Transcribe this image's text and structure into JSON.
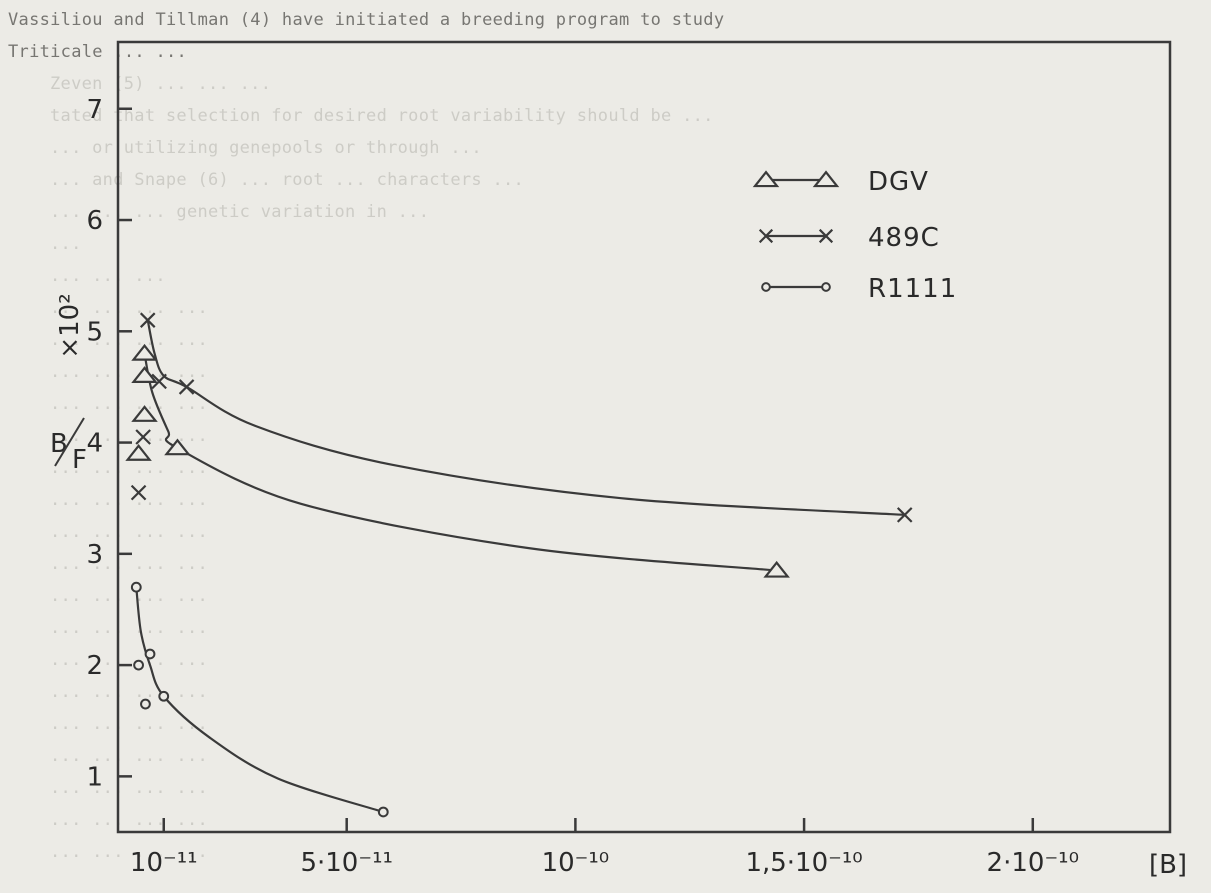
{
  "background_text": [
    "Vassiliou and Tillman (4) have initiated a breeding program to study",
    "Triticale ... ...",
    "Zeven (5) ... ... ...",
    "tated that selection for desired root variability should be ...",
    "... or utilizing genepools or through ...",
    "... and Snape (6) ... root ... characters ...",
    "... ... ... genetic variation in ...",
    "...",
    "... ... ...",
    "... ... ... ...",
    "... ... ... ...",
    "... ... ... ...",
    "... ... ... ...",
    "... ... ... ...",
    "... ... ... ...",
    "... ... ... ...",
    "... ... ... ...",
    "... ... ... ...",
    "... ... ... ...",
    "... ... ... ...",
    "... ... ... ...",
    "... ... ... ...",
    "... ... ... ...",
    "... ... ... ...",
    "... ... ... ...",
    "... ... ... ...",
    "... ... ... ..."
  ],
  "chart_data": {
    "type": "line",
    "ylabel": "B/F ×10²",
    "xlabel_unit": "[B]",
    "xlim": [
      0,
      2.3e-10
    ],
    "ylim": [
      0.5,
      7.6
    ],
    "x_ticks": [
      {
        "value": 1e-11,
        "label": "10⁻¹¹"
      },
      {
        "value": 5e-11,
        "label": "5·10⁻¹¹"
      },
      {
        "value": 1e-10,
        "label": "10⁻¹⁰"
      },
      {
        "value": 1.5e-10,
        "label": "1,5·10⁻¹⁰"
      },
      {
        "value": 2e-10,
        "label": "2·10⁻¹⁰"
      }
    ],
    "y_ticks": [
      1,
      2,
      3,
      4,
      5,
      6,
      7
    ],
    "grid": false,
    "legend_position": "top-right",
    "series": [
      {
        "name": "DGV",
        "marker": "triangle",
        "points": [
          [
            4.5e-12,
            3.9
          ],
          [
            5.8e-12,
            4.25
          ],
          [
            5.8e-12,
            4.6
          ],
          [
            5.8e-12,
            4.8
          ],
          [
            1.3e-11,
            3.95
          ],
          [
            1.44e-10,
            2.85
          ]
        ],
        "curve": [
          [
            5.8e-12,
            4.8
          ],
          [
            7.5e-12,
            4.45
          ],
          [
            1.1e-11,
            4.1
          ],
          [
            1.3e-11,
            3.95
          ],
          [
            4e-11,
            3.45
          ],
          [
            9e-11,
            3.05
          ],
          [
            1.44e-10,
            2.85
          ]
        ]
      },
      {
        "name": "489C",
        "marker": "x",
        "points": [
          [
            4.5e-12,
            3.55
          ],
          [
            5.5e-12,
            4.05
          ],
          [
            6.5e-12,
            5.1
          ],
          [
            9e-12,
            4.55
          ],
          [
            1.5e-11,
            4.5
          ],
          [
            1.72e-10,
            3.35
          ]
        ],
        "curve": [
          [
            6.5e-12,
            5.1
          ],
          [
            8e-12,
            4.8
          ],
          [
            1e-11,
            4.6
          ],
          [
            1.5e-11,
            4.5
          ],
          [
            3e-11,
            4.15
          ],
          [
            6e-11,
            3.8
          ],
          [
            1.1e-10,
            3.5
          ],
          [
            1.72e-10,
            3.35
          ]
        ]
      },
      {
        "name": "R1111",
        "marker": "circle",
        "points": [
          [
            4e-12,
            2.7
          ],
          [
            4.5e-12,
            2.0
          ],
          [
            6e-12,
            1.65
          ],
          [
            7e-12,
            2.1
          ],
          [
            1e-11,
            1.72
          ],
          [
            5.8e-11,
            0.68
          ]
        ],
        "curve": [
          [
            4e-12,
            2.7
          ],
          [
            5e-12,
            2.3
          ],
          [
            7e-12,
            2.0
          ],
          [
            1e-11,
            1.72
          ],
          [
            2e-11,
            1.35
          ],
          [
            3.5e-11,
            0.98
          ],
          [
            5.8e-11,
            0.68
          ]
        ]
      }
    ]
  }
}
